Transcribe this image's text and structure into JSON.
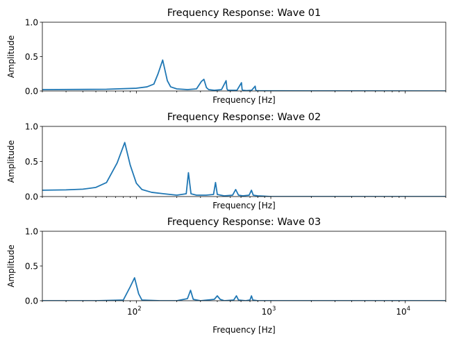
{
  "chart_data": [
    {
      "type": "line",
      "title": "Frequency Response: Wave 01",
      "xlabel": "Frequency [Hz]",
      "ylabel": "Amplitude",
      "xscale": "log",
      "xlim": [
        20,
        20000
      ],
      "ylim": [
        0,
        1.0
      ],
      "yticks": [
        0.0,
        0.5,
        1.0
      ],
      "ytick_labels": [
        "0.0",
        "0.5",
        "1.0"
      ],
      "xtick_labels_shown": false,
      "color": "#1f77b4",
      "x": [
        20,
        60,
        100,
        120,
        135,
        145,
        157,
        170,
        180,
        200,
        240,
        280,
        305,
        318,
        332,
        345,
        380,
        430,
        465,
        472,
        480,
        500,
        560,
        605,
        612,
        620,
        660,
        720,
        765,
        772,
        780,
        820,
        900,
        1200,
        2000,
        5000,
        20000
      ],
      "y": [
        0.02,
        0.025,
        0.04,
        0.06,
        0.1,
        0.25,
        0.45,
        0.15,
        0.06,
        0.03,
        0.02,
        0.03,
        0.14,
        0.17,
        0.05,
        0.02,
        0.01,
        0.02,
        0.15,
        0.03,
        0.01,
        0.01,
        0.01,
        0.12,
        0.02,
        0.01,
        0.005,
        0.01,
        0.07,
        0.02,
        0.005,
        0.003,
        0.002,
        0.002,
        0.001,
        0.001,
        0.0
      ]
    },
    {
      "type": "line",
      "title": "Frequency Response: Wave 02",
      "xlabel": "Frequency [Hz]",
      "ylabel": "Amplitude",
      "xscale": "log",
      "xlim": [
        20,
        20000
      ],
      "ylim": [
        0,
        1.0
      ],
      "yticks": [
        0.0,
        0.5,
        1.0
      ],
      "ytick_labels": [
        "0.0",
        "0.5",
        "1.0"
      ],
      "xtick_labels_shown": false,
      "color": "#1f77b4",
      "x": [
        20,
        30,
        40,
        50,
        60,
        72,
        82,
        90,
        100,
        110,
        130,
        160,
        200,
        235,
        244,
        255,
        280,
        330,
        375,
        388,
        400,
        450,
        520,
        548,
        575,
        620,
        690,
        718,
        740,
        800,
        1000,
        2000,
        20000
      ],
      "y": [
        0.09,
        0.095,
        0.105,
        0.13,
        0.2,
        0.48,
        0.77,
        0.45,
        0.19,
        0.1,
        0.06,
        0.04,
        0.02,
        0.04,
        0.34,
        0.04,
        0.02,
        0.02,
        0.03,
        0.2,
        0.03,
        0.01,
        0.02,
        0.1,
        0.02,
        0.01,
        0.02,
        0.09,
        0.02,
        0.01,
        0.0,
        0.0,
        0.0
      ]
    },
    {
      "type": "line",
      "title": "Frequency Response: Wave 03",
      "xlabel": "Frequency [Hz]",
      "ylabel": "Amplitude",
      "xscale": "log",
      "xlim": [
        20,
        20000
      ],
      "ylim": [
        0,
        1.0
      ],
      "yticks": [
        0.0,
        0.5,
        1.0
      ],
      "ytick_labels": [
        "0.0",
        "0.5",
        "1.0"
      ],
      "xticks": [
        100,
        1000,
        10000
      ],
      "xtick_labels": [
        {
          "base": "10",
          "exp": "2"
        },
        {
          "base": "10",
          "exp": "3"
        },
        {
          "base": "10",
          "exp": "4"
        }
      ],
      "xtick_labels_shown": true,
      "color": "#1f77b4",
      "x": [
        20,
        50,
        80,
        90,
        97,
        104,
        110,
        150,
        200,
        240,
        253,
        265,
        300,
        380,
        400,
        420,
        450,
        530,
        555,
        575,
        650,
        700,
        718,
        735,
        800,
        1000,
        2000,
        20000
      ],
      "y": [
        0.0,
        0.0,
        0.01,
        0.2,
        0.33,
        0.1,
        0.01,
        0.0,
        0.0,
        0.03,
        0.15,
        0.02,
        0.0,
        0.02,
        0.07,
        0.02,
        0.0,
        0.01,
        0.07,
        0.01,
        0.0,
        0.01,
        0.07,
        0.01,
        0.0,
        0.0,
        0.0,
        0.0
      ]
    }
  ]
}
